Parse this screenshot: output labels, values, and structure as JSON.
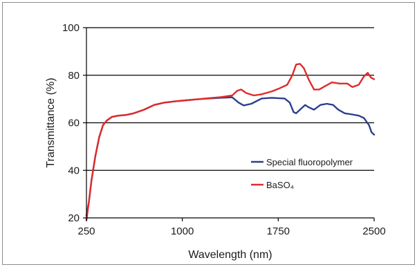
{
  "chart_data": {
    "type": "line",
    "xlabel": "Wavelength (nm)",
    "ylabel": "Transmittance (%)",
    "xlim": [
      250,
      2500
    ],
    "ylim": [
      20,
      100
    ],
    "x_ticks": [
      250,
      1000,
      1750,
      2500
    ],
    "x_tick_labels": [
      "250",
      "1000",
      "1750",
      "2500"
    ],
    "y_ticks": [
      20,
      40,
      60,
      80,
      100
    ],
    "y_tick_labels": [
      "20",
      "40",
      "60",
      "80",
      "100"
    ],
    "grid": "horizontal",
    "legend_position": "bottom-right",
    "series": [
      {
        "name": "Special fluoropolymer",
        "color": "#2b3f8c",
        "points": [
          [
            250,
            21
          ],
          [
            270,
            27
          ],
          [
            290,
            36
          ],
          [
            320,
            46
          ],
          [
            350,
            54
          ],
          [
            380,
            59
          ],
          [
            410,
            61
          ],
          [
            450,
            62.5
          ],
          [
            500,
            63
          ],
          [
            560,
            63.3
          ],
          [
            620,
            64
          ],
          [
            700,
            65.5
          ],
          [
            780,
            67.5
          ],
          [
            860,
            68.5
          ],
          [
            940,
            69
          ],
          [
            1000,
            69.3
          ],
          [
            1100,
            69.8
          ],
          [
            1200,
            70.2
          ],
          [
            1300,
            70.5
          ],
          [
            1390,
            70.7
          ],
          [
            1440,
            68.5
          ],
          [
            1480,
            67.3
          ],
          [
            1540,
            68
          ],
          [
            1620,
            70.2
          ],
          [
            1700,
            70.5
          ],
          [
            1800,
            70.2
          ],
          [
            1840,
            68.5
          ],
          [
            1870,
            64.5
          ],
          [
            1890,
            64
          ],
          [
            1920,
            65.5
          ],
          [
            1960,
            67.5
          ],
          [
            1990,
            66.5
          ],
          [
            2030,
            65.5
          ],
          [
            2080,
            67.5
          ],
          [
            2130,
            68
          ],
          [
            2180,
            67.5
          ],
          [
            2220,
            65.5
          ],
          [
            2270,
            64
          ],
          [
            2330,
            63.5
          ],
          [
            2380,
            63
          ],
          [
            2420,
            62
          ],
          [
            2460,
            59
          ],
          [
            2480,
            56
          ],
          [
            2500,
            55
          ]
        ]
      },
      {
        "name": "BaSO₄",
        "color": "#e02a2a",
        "points": [
          [
            250,
            19
          ],
          [
            270,
            27
          ],
          [
            290,
            36
          ],
          [
            320,
            46
          ],
          [
            350,
            54
          ],
          [
            380,
            59
          ],
          [
            410,
            61
          ],
          [
            450,
            62.5
          ],
          [
            500,
            63
          ],
          [
            560,
            63.3
          ],
          [
            620,
            64
          ],
          [
            700,
            65.5
          ],
          [
            780,
            67.5
          ],
          [
            860,
            68.5
          ],
          [
            940,
            69
          ],
          [
            1000,
            69.3
          ],
          [
            1100,
            69.8
          ],
          [
            1200,
            70.3
          ],
          [
            1300,
            70.8
          ],
          [
            1390,
            71.5
          ],
          [
            1430,
            73.5
          ],
          [
            1460,
            74
          ],
          [
            1500,
            72.5
          ],
          [
            1560,
            71.5
          ],
          [
            1620,
            72
          ],
          [
            1700,
            73.2
          ],
          [
            1760,
            74.5
          ],
          [
            1820,
            76
          ],
          [
            1860,
            80
          ],
          [
            1890,
            84.5
          ],
          [
            1920,
            84.8
          ],
          [
            1950,
            83
          ],
          [
            1990,
            78
          ],
          [
            2030,
            74
          ],
          [
            2070,
            74
          ],
          [
            2120,
            75.5
          ],
          [
            2170,
            77
          ],
          [
            2230,
            76.5
          ],
          [
            2290,
            76.5
          ],
          [
            2330,
            75
          ],
          [
            2380,
            76
          ],
          [
            2420,
            79.5
          ],
          [
            2450,
            81
          ],
          [
            2475,
            79
          ],
          [
            2500,
            78.3
          ]
        ]
      }
    ]
  }
}
